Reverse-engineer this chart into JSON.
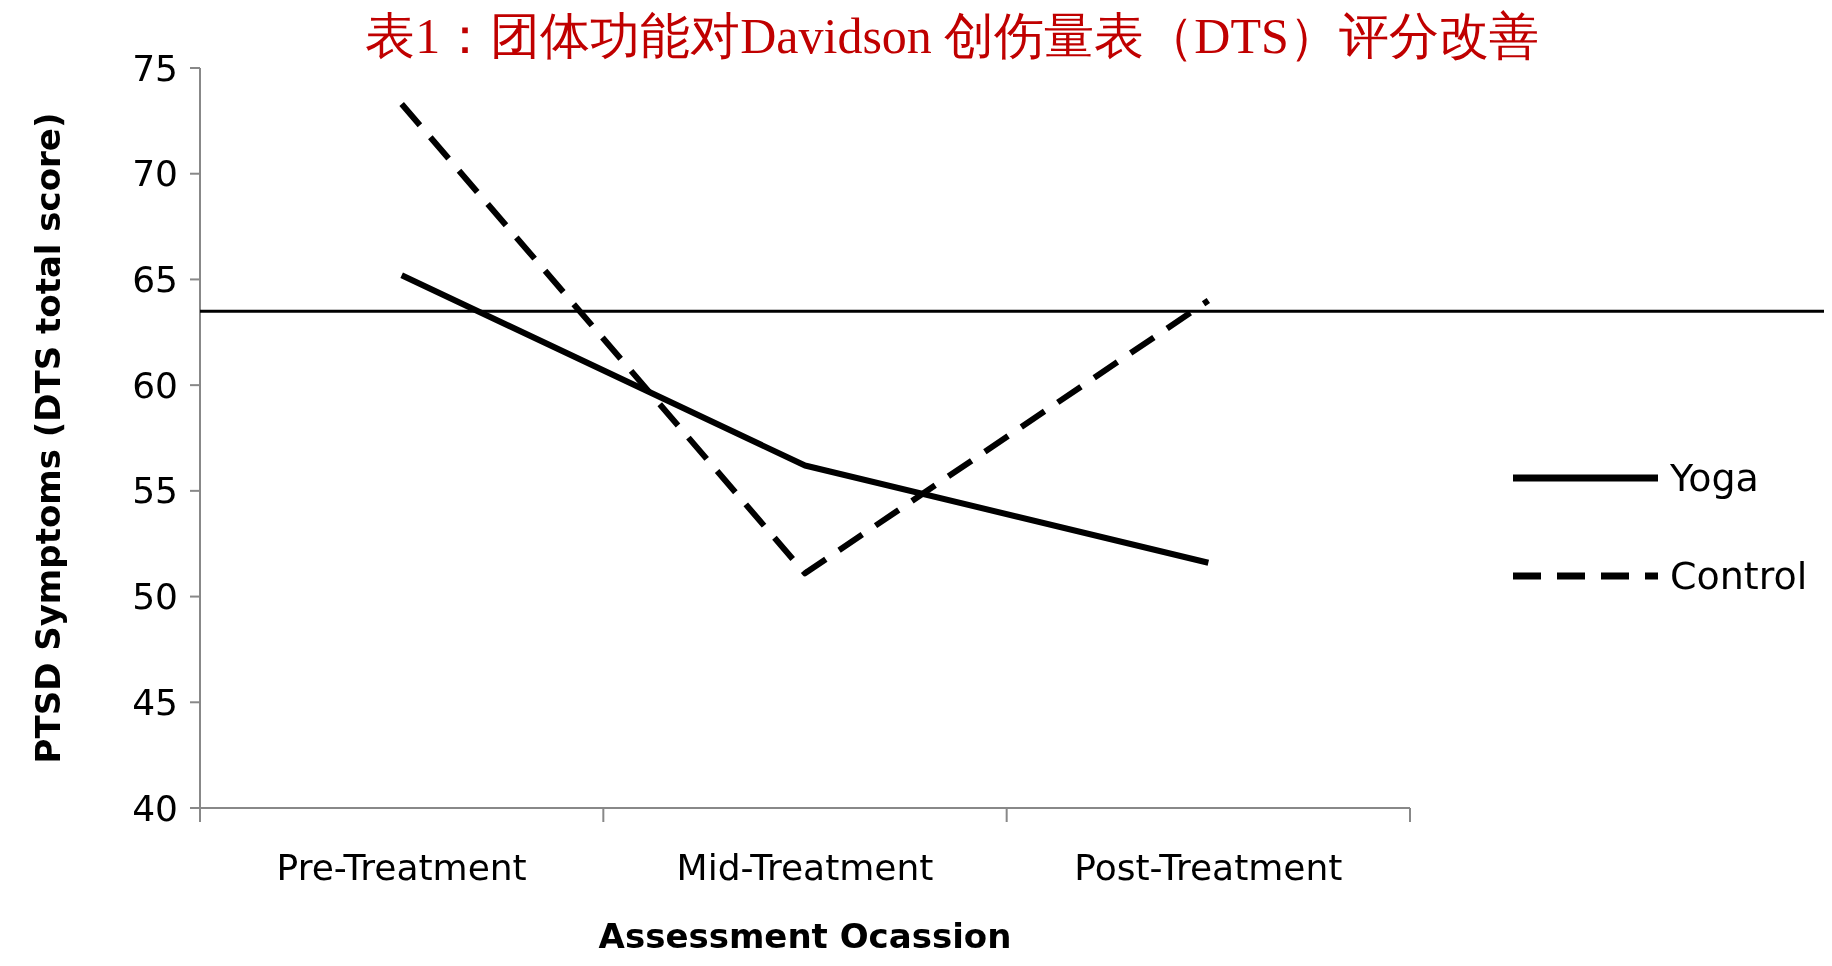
{
  "chart_data": {
    "type": "line",
    "title": "表1：团体功能对Davidson 创伤量表（DTS）评分改善",
    "xlabel": "Assessment Ocassion",
    "ylabel": "PTSD Symptoms (DTS total score)",
    "categories": [
      "Pre-Treatment",
      "Mid-Treatment",
      "Post-Treatment"
    ],
    "series": [
      {
        "name": "Yoga",
        "color": "#000000",
        "values": [
          65.2,
          56.2,
          51.6
        ],
        "line_style": "solid"
      },
      {
        "name": "Control",
        "color": "#000000",
        "values": [
          73.3,
          51.1,
          64
        ],
        "line_style": "dashed"
      }
    ],
    "ylim": [
      40,
      75
    ],
    "yticks": [
      40,
      45,
      50,
      55,
      60,
      65,
      70,
      75
    ],
    "grid": false,
    "legend": "right",
    "marker": "none",
    "ref_lines": [
      {
        "axis": "y",
        "value": 63.5,
        "color": "#000000"
      }
    ]
  }
}
